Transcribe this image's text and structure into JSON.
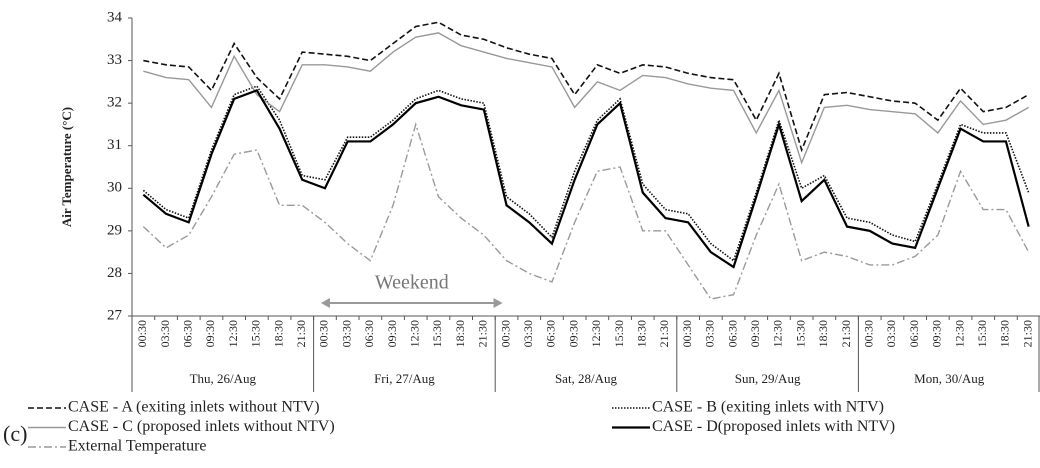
{
  "chart_data": {
    "type": "line",
    "y_label": "Air Temperature (°C)",
    "panel_label": "(c)",
    "annotation": "Weekend",
    "categories": [
      "00:30",
      "03:30",
      "06:30",
      "09:30",
      "12:30",
      "15:30",
      "18:30",
      "21:30",
      "00:30",
      "03:30",
      "06:30",
      "09:30",
      "12:30",
      "15:30",
      "18:30",
      "21:30",
      "00:30",
      "03:30",
      "06:30",
      "09:30",
      "12:30",
      "15:30",
      "18:30",
      "21:30",
      "00:30",
      "03:30",
      "06:30",
      "09:30",
      "12:30",
      "15:30",
      "18:30",
      "21:30",
      "00:30",
      "03:30",
      "06:30",
      "09:30",
      "12:30",
      "15:30",
      "18:30",
      "21:30"
    ],
    "day_labels": [
      "Thu, 26/Aug",
      "Fri, 27/Aug",
      "Sat, 28/Aug",
      "Sun, 29/Aug",
      "Mon, 30/Aug"
    ],
    "series": [
      {
        "name": "CASE - A (exiting inlets without NTV)",
        "color": "#111111",
        "dash": "6,3",
        "width": 1.6,
        "values": [
          33.0,
          32.9,
          32.85,
          32.3,
          33.4,
          32.6,
          32.1,
          33.2,
          33.15,
          33.1,
          33.0,
          33.4,
          33.8,
          33.9,
          33.6,
          33.5,
          33.3,
          33.15,
          33.05,
          32.2,
          32.9,
          32.7,
          32.9,
          32.85,
          32.7,
          32.6,
          32.55,
          31.6,
          32.7,
          30.9,
          32.2,
          32.25,
          32.15,
          32.05,
          32.0,
          31.6,
          32.35,
          31.8,
          31.9,
          32.2
        ]
      },
      {
        "name": "CASE - B (exiting inlets with NTV)",
        "color": "#111111",
        "dash": "1.5,1.5",
        "width": 1.6,
        "values": [
          29.95,
          29.5,
          29.3,
          30.9,
          32.2,
          32.4,
          31.6,
          30.3,
          30.2,
          31.2,
          31.2,
          31.6,
          32.1,
          32.3,
          32.1,
          32.0,
          29.8,
          29.4,
          28.85,
          30.4,
          31.6,
          32.1,
          30.1,
          29.5,
          29.4,
          28.7,
          28.3,
          29.9,
          31.6,
          30.0,
          30.3,
          29.3,
          29.2,
          28.9,
          28.75,
          30.1,
          31.5,
          31.3,
          31.3,
          29.9
        ]
      },
      {
        "name": "CASE - C (proposed inlets without NTV)",
        "color": "#999999",
        "dash": "none",
        "width": 1.4,
        "values": [
          32.75,
          32.6,
          32.55,
          31.9,
          33.1,
          32.2,
          31.8,
          32.9,
          32.9,
          32.85,
          32.75,
          33.2,
          33.55,
          33.65,
          33.35,
          33.2,
          33.05,
          32.95,
          32.85,
          31.9,
          32.5,
          32.3,
          32.65,
          32.6,
          32.45,
          32.35,
          32.3,
          31.3,
          32.3,
          30.6,
          31.9,
          31.95,
          31.85,
          31.8,
          31.75,
          31.3,
          32.05,
          31.5,
          31.6,
          31.9
        ]
      },
      {
        "name": "CASE - D(proposed inlets with NTV)",
        "color": "#000000",
        "dash": "none",
        "width": 2.2,
        "values": [
          29.85,
          29.4,
          29.2,
          30.8,
          32.1,
          32.3,
          31.4,
          30.2,
          30.0,
          31.1,
          31.1,
          31.5,
          32.0,
          32.15,
          31.95,
          31.85,
          29.6,
          29.2,
          28.7,
          30.2,
          31.5,
          32.0,
          29.9,
          29.3,
          29.2,
          28.5,
          28.15,
          29.8,
          31.5,
          29.7,
          30.2,
          29.1,
          29.0,
          28.7,
          28.6,
          30.0,
          31.4,
          31.1,
          31.1,
          29.1
        ]
      },
      {
        "name": "External Temperature",
        "color": "#9a9a9a",
        "dash": "8,3,2,3",
        "width": 1.4,
        "values": [
          29.1,
          28.6,
          28.9,
          29.8,
          30.8,
          30.9,
          29.6,
          29.6,
          29.2,
          28.7,
          28.3,
          29.6,
          31.5,
          29.8,
          29.3,
          28.9,
          28.3,
          28.0,
          27.8,
          29.2,
          30.4,
          30.5,
          29.0,
          29.0,
          28.2,
          27.4,
          27.5,
          28.9,
          30.1,
          28.3,
          28.5,
          28.4,
          28.2,
          28.2,
          28.4,
          28.9,
          30.4,
          29.5,
          29.5,
          28.5
        ]
      }
    ],
    "ylim": [
      27,
      34
    ],
    "yticks": [
      27,
      28,
      29,
      30,
      31,
      32,
      33,
      34
    ],
    "grid": false
  }
}
